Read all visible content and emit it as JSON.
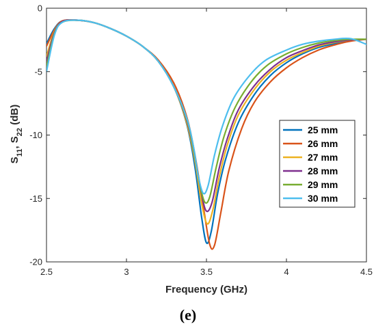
{
  "caption": "(e)",
  "colors": {
    "25 mm": "#0072BD",
    "26 mm": "#D95319",
    "27 mm": "#EDB120",
    "28 mm": "#7E2F8E",
    "29 mm": "#77AC30",
    "30 mm": "#4DBEEE"
  },
  "chart_data": {
    "type": "line",
    "title": "",
    "xlabel": "Frequency (GHz)",
    "ylabel": "S11, S22 (dB)",
    "ylabel_parts": {
      "s": "S",
      "sub1": "11",
      "comma": ", ",
      "sub2": "22",
      "unit": " (dB)"
    },
    "xlim": [
      2.5,
      4.5
    ],
    "ylim": [
      -20,
      0
    ],
    "xticks": [
      2.5,
      3,
      3.5,
      4,
      4.5
    ],
    "xtick_labels": [
      "2.5",
      "3",
      "3.5",
      "4",
      "4.5"
    ],
    "yticks": [
      0,
      -5,
      -10,
      -15,
      -20
    ],
    "ytick_labels": [
      "0",
      "-5",
      "-10",
      "-15",
      "-20"
    ],
    "grid": false,
    "legend_position": "right",
    "series": [
      {
        "name": "25 mm",
        "color": "#0072BD",
        "x": [
          2.5,
          2.55,
          2.6,
          2.7,
          2.8,
          2.9,
          3.0,
          3.1,
          3.2,
          3.3,
          3.38,
          3.43,
          3.47,
          3.5,
          3.53,
          3.57,
          3.62,
          3.7,
          3.8,
          3.9,
          4.0,
          4.1,
          4.2,
          4.3,
          4.4,
          4.5
        ],
        "y": [
          -2.8,
          -1.6,
          -1.0,
          -0.95,
          -1.15,
          -1.6,
          -2.2,
          -3.0,
          -4.2,
          -6.3,
          -9.3,
          -12.7,
          -16.5,
          -18.5,
          -17.6,
          -14.6,
          -11.9,
          -9.0,
          -6.8,
          -5.3,
          -4.3,
          -3.6,
          -3.1,
          -2.8,
          -2.55,
          -2.45
        ]
      },
      {
        "name": "26 mm",
        "color": "#D95319",
        "x": [
          2.5,
          2.55,
          2.6,
          2.7,
          2.8,
          2.9,
          3.0,
          3.1,
          3.2,
          3.3,
          3.38,
          3.43,
          3.48,
          3.52,
          3.55,
          3.59,
          3.64,
          3.72,
          3.8,
          3.9,
          4.0,
          4.1,
          4.2,
          4.3,
          4.4,
          4.5
        ],
        "y": [
          -3.0,
          -1.7,
          -1.0,
          -0.95,
          -1.15,
          -1.6,
          -2.2,
          -3.0,
          -4.1,
          -6.0,
          -8.7,
          -11.7,
          -15.6,
          -18.6,
          -18.7,
          -16.1,
          -12.8,
          -9.5,
          -7.4,
          -5.8,
          -4.7,
          -3.9,
          -3.3,
          -2.9,
          -2.6,
          -2.45
        ]
      },
      {
        "name": "27 mm",
        "color": "#EDB120",
        "x": [
          2.5,
          2.55,
          2.6,
          2.7,
          2.8,
          2.9,
          3.0,
          3.1,
          3.2,
          3.3,
          3.38,
          3.43,
          3.47,
          3.505,
          3.54,
          3.58,
          3.63,
          3.7,
          3.8,
          3.9,
          4.0,
          4.1,
          4.2,
          4.3,
          4.4,
          4.5
        ],
        "y": [
          -3.8,
          -1.8,
          -1.05,
          -0.95,
          -1.15,
          -1.6,
          -2.2,
          -3.0,
          -4.2,
          -6.3,
          -9.2,
          -12.2,
          -15.4,
          -17.0,
          -15.9,
          -13.3,
          -10.8,
          -8.4,
          -6.4,
          -5.0,
          -4.1,
          -3.5,
          -3.0,
          -2.7,
          -2.5,
          -2.45
        ]
      },
      {
        "name": "28 mm",
        "color": "#7E2F8E",
        "x": [
          2.5,
          2.55,
          2.6,
          2.7,
          2.8,
          2.9,
          3.0,
          3.1,
          3.2,
          3.3,
          3.38,
          3.43,
          3.47,
          3.5,
          3.535,
          3.58,
          3.63,
          3.7,
          3.8,
          3.9,
          4.0,
          4.1,
          4.2,
          4.3,
          4.4,
          4.5
        ],
        "y": [
          -4.2,
          -1.9,
          -1.05,
          -0.95,
          -1.15,
          -1.6,
          -2.2,
          -3.0,
          -4.2,
          -6.3,
          -9.0,
          -11.9,
          -14.7,
          -16.0,
          -15.3,
          -12.6,
          -10.3,
          -8.0,
          -6.1,
          -4.8,
          -3.9,
          -3.35,
          -2.9,
          -2.65,
          -2.5,
          -2.45
        ]
      },
      {
        "name": "29 mm",
        "color": "#77AC30",
        "x": [
          2.5,
          2.55,
          2.6,
          2.7,
          2.8,
          2.9,
          3.0,
          3.1,
          3.2,
          3.3,
          3.38,
          3.42,
          3.46,
          3.49,
          3.52,
          3.56,
          3.61,
          3.68,
          3.78,
          3.88,
          4.0,
          4.1,
          4.2,
          4.3,
          4.4,
          4.5
        ],
        "y": [
          -4.6,
          -2.0,
          -1.1,
          -0.95,
          -1.15,
          -1.6,
          -2.2,
          -3.0,
          -4.2,
          -6.3,
          -8.9,
          -11.2,
          -14.0,
          -15.3,
          -14.9,
          -12.6,
          -10.1,
          -7.8,
          -5.8,
          -4.5,
          -3.6,
          -3.1,
          -2.75,
          -2.55,
          -2.45,
          -2.45
        ]
      },
      {
        "name": "30 mm",
        "color": "#4DBEEE",
        "x": [
          2.5,
          2.55,
          2.6,
          2.7,
          2.8,
          2.9,
          3.0,
          3.1,
          3.2,
          3.3,
          3.38,
          3.42,
          3.45,
          3.48,
          3.51,
          3.55,
          3.6,
          3.67,
          3.77,
          3.87,
          4.0,
          4.1,
          4.2,
          4.3,
          4.4,
          4.5
        ],
        "y": [
          -5.0,
          -2.1,
          -1.1,
          -0.95,
          -1.15,
          -1.6,
          -2.2,
          -3.0,
          -4.2,
          -6.3,
          -8.8,
          -11.0,
          -13.3,
          -14.6,
          -14.0,
          -11.6,
          -9.3,
          -7.1,
          -5.3,
          -4.1,
          -3.3,
          -2.85,
          -2.6,
          -2.45,
          -2.4,
          -2.85
        ]
      }
    ]
  }
}
